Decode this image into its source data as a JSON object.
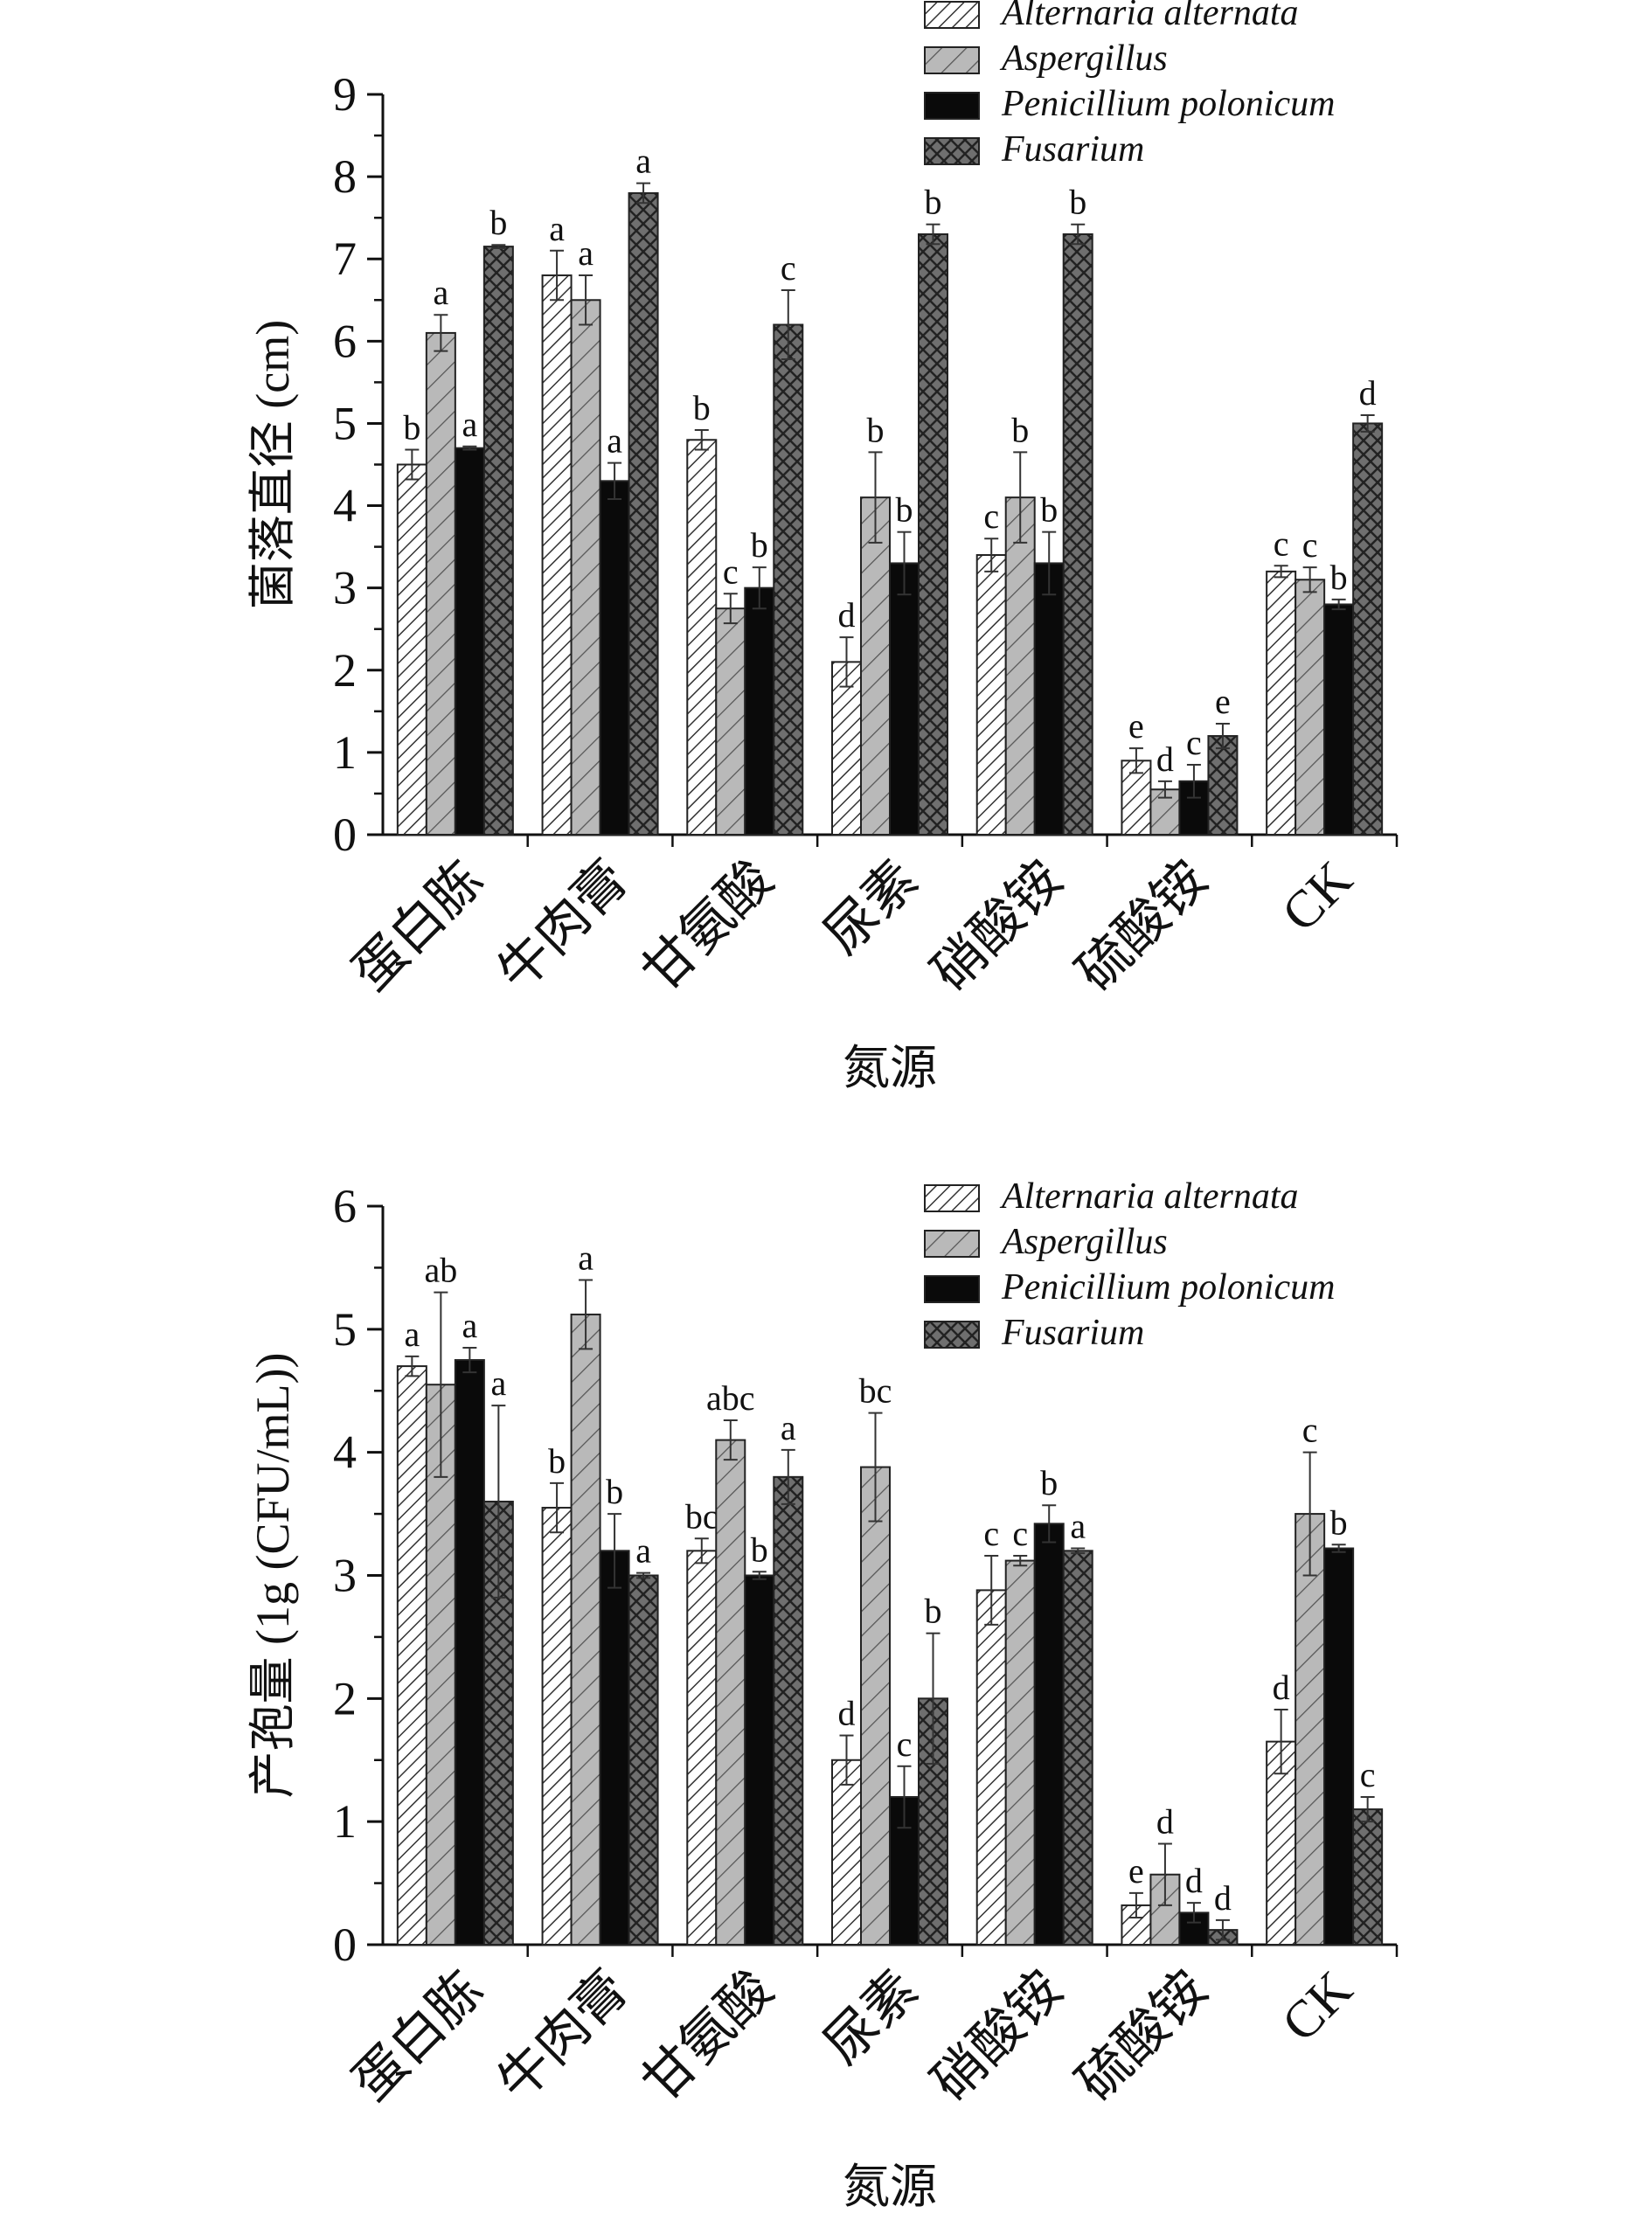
{
  "legend": [
    "Alternaria alternata",
    "Aspergillus",
    "Penicillium polonicum",
    "Fusarium"
  ],
  "colors": {
    "axis": "#111111",
    "black": "#0a0a0a",
    "hatch_bg": "#ffffff",
    "gray_bg": "#b9b9b9",
    "dark_bg": "#6f6f6f"
  },
  "chart_data": [
    {
      "type": "bar",
      "categories": [
        "蛋白胨",
        "牛肉膏",
        "甘氨酸",
        "尿素",
        "硝酸铵",
        "硫酸铵",
        "CK"
      ],
      "xlabel": "氮源",
      "ylabel": "菌落直径 (cm)",
      "ylim": [
        0,
        9
      ],
      "yticks": [
        0,
        1,
        2,
        3,
        4,
        5,
        6,
        7,
        8,
        9
      ],
      "legend_position": "top-right",
      "series": [
        {
          "name": "Alternaria alternata",
          "values": [
            4.5,
            6.8,
            4.8,
            2.1,
            3.4,
            0.9,
            3.2
          ],
          "errors": [
            0.18,
            0.3,
            0.12,
            0.3,
            0.2,
            0.15,
            0.07
          ],
          "labels": [
            "b",
            "a",
            "b",
            "d",
            "c",
            "e",
            "c"
          ]
        },
        {
          "name": "Aspergillus",
          "values": [
            6.1,
            6.5,
            2.75,
            4.1,
            4.1,
            0.55,
            3.1
          ],
          "errors": [
            0.22,
            0.3,
            0.18,
            0.55,
            0.55,
            0.1,
            0.15
          ],
          "labels": [
            "a",
            "a",
            "c",
            "b",
            "b",
            "d",
            "c"
          ]
        },
        {
          "name": "Penicillium polonicum",
          "values": [
            4.7,
            4.3,
            3.0,
            3.3,
            3.3,
            0.65,
            2.8
          ],
          "errors": [
            0.02,
            0.22,
            0.25,
            0.38,
            0.38,
            0.2,
            0.06
          ],
          "labels": [
            "a",
            "a",
            "b",
            "b",
            "b",
            "c",
            "b"
          ]
        },
        {
          "name": "Fusarium",
          "values": [
            7.15,
            7.8,
            6.2,
            7.3,
            7.3,
            1.2,
            5.0
          ],
          "errors": [
            0.02,
            0.12,
            0.42,
            0.12,
            0.12,
            0.15,
            0.1
          ],
          "labels": [
            "b",
            "a",
            "c",
            "b",
            "b",
            "e",
            "d"
          ]
        }
      ]
    },
    {
      "type": "bar",
      "categories": [
        "蛋白胨",
        "牛肉膏",
        "甘氨酸",
        "尿素",
        "硝酸铵",
        "硫酸铵",
        "CK"
      ],
      "xlabel": "氮源",
      "ylabel": "产孢量 (1g (CFU/mL))",
      "ylim": [
        0,
        6
      ],
      "yticks": [
        0,
        1,
        2,
        3,
        4,
        5,
        6
      ],
      "legend_position": "top-right",
      "series": [
        {
          "name": "Alternaria alternata",
          "values": [
            4.7,
            3.55,
            3.2,
            1.5,
            2.88,
            0.32,
            1.65
          ],
          "errors": [
            0.08,
            0.2,
            0.1,
            0.2,
            0.28,
            0.1,
            0.26
          ],
          "labels": [
            "a",
            "b",
            "bc",
            "d",
            "c",
            "e",
            "d"
          ]
        },
        {
          "name": "Aspergillus",
          "values": [
            4.55,
            5.12,
            4.1,
            3.88,
            3.12,
            0.57,
            3.5
          ],
          "errors": [
            0.75,
            0.28,
            0.16,
            0.44,
            0.04,
            0.25,
            0.5
          ],
          "labels": [
            "ab",
            "a",
            "abc",
            "bc",
            "c",
            "d",
            "c"
          ]
        },
        {
          "name": "Penicillium polonicum",
          "values": [
            4.75,
            3.2,
            3.0,
            1.2,
            3.42,
            0.26,
            3.22
          ],
          "errors": [
            0.1,
            0.3,
            0.03,
            0.25,
            0.15,
            0.08,
            0.03
          ],
          "labels": [
            "a",
            "b",
            "b",
            "c",
            "b",
            "d",
            "b"
          ]
        },
        {
          "name": "Fusarium",
          "values": [
            3.6,
            3.0,
            3.8,
            2.0,
            3.2,
            0.12,
            1.1
          ],
          "errors": [
            0.78,
            0.02,
            0.22,
            0.53,
            0.02,
            0.08,
            0.1
          ],
          "labels": [
            "a",
            "a",
            "a",
            "b",
            "a",
            "d",
            "c"
          ]
        }
      ]
    }
  ]
}
